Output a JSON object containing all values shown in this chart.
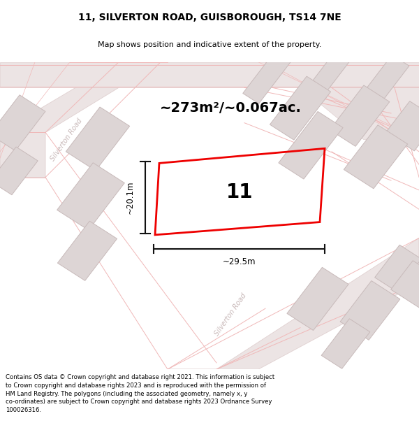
{
  "title": "11, SILVERTON ROAD, GUISBOROUGH, TS14 7NE",
  "subtitle": "Map shows position and indicative extent of the property.",
  "area_label": "~273m²/~0.067ac.",
  "plot_number": "11",
  "width_label": "~29.5m",
  "height_label": "~20.1m",
  "footer": "Contains OS data © Crown copyright and database right 2021. This information is subject\nto Crown copyright and database rights 2023 and is reproduced with the permission of\nHM Land Registry. The polygons (including the associated geometry, namely x, y\nco-ordinates) are subject to Crown copyright and database rights 2023 Ordnance Survey\n100026316.",
  "map_bg": "#f4efef",
  "road_fill": "#ece4e4",
  "road_edge": "#e0d0d0",
  "bld_fill": "#ddd5d5",
  "bld_edge": "#c8baba",
  "pink_line": "#f0b8b8",
  "plot_edge": "#ee0000",
  "street_text": "#c8b8b8",
  "dim_color": "#111111"
}
